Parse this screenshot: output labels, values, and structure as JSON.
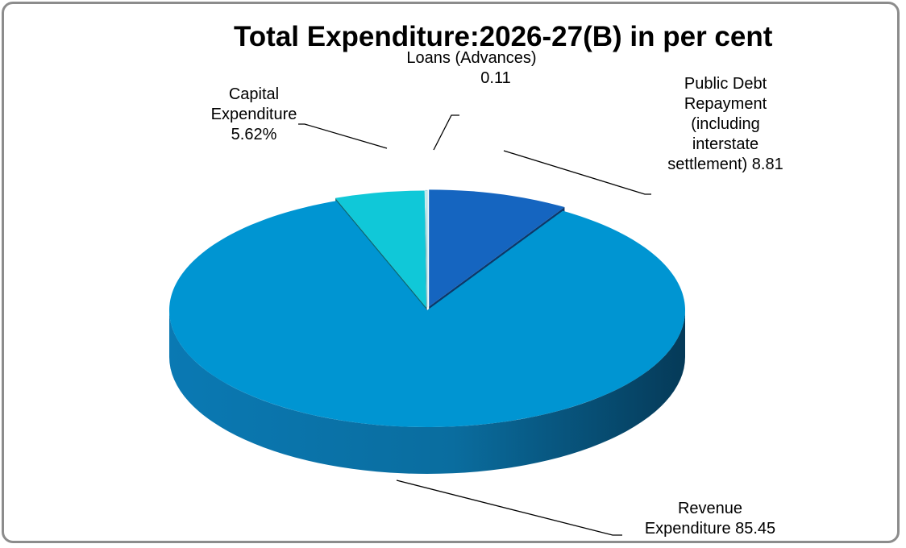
{
  "chart_data": {
    "type": "pie",
    "title": "Total Expenditure:2026-27(B) in per cent",
    "three_d": true,
    "exploded": true,
    "legend": "none",
    "slices": [
      {
        "label_lines": [
          "Public Debt",
          "Repayment",
          "(including",
          "interstate",
          "settlement) 8.81"
        ],
        "value": 8.81,
        "color": "#1565c0"
      },
      {
        "label_lines": [
          "Revenue",
          "Expenditure 85.45"
        ],
        "value": 85.45,
        "color": "#0095d2"
      },
      {
        "label_lines": [
          "Capital",
          "Expenditure",
          "5.62%"
        ],
        "value": 5.62,
        "color": "#10c8d8"
      },
      {
        "label_lines": [
          "Loans (Advances)",
          "0.11"
        ],
        "value": 0.11,
        "color": "#dff5f7"
      }
    ]
  }
}
